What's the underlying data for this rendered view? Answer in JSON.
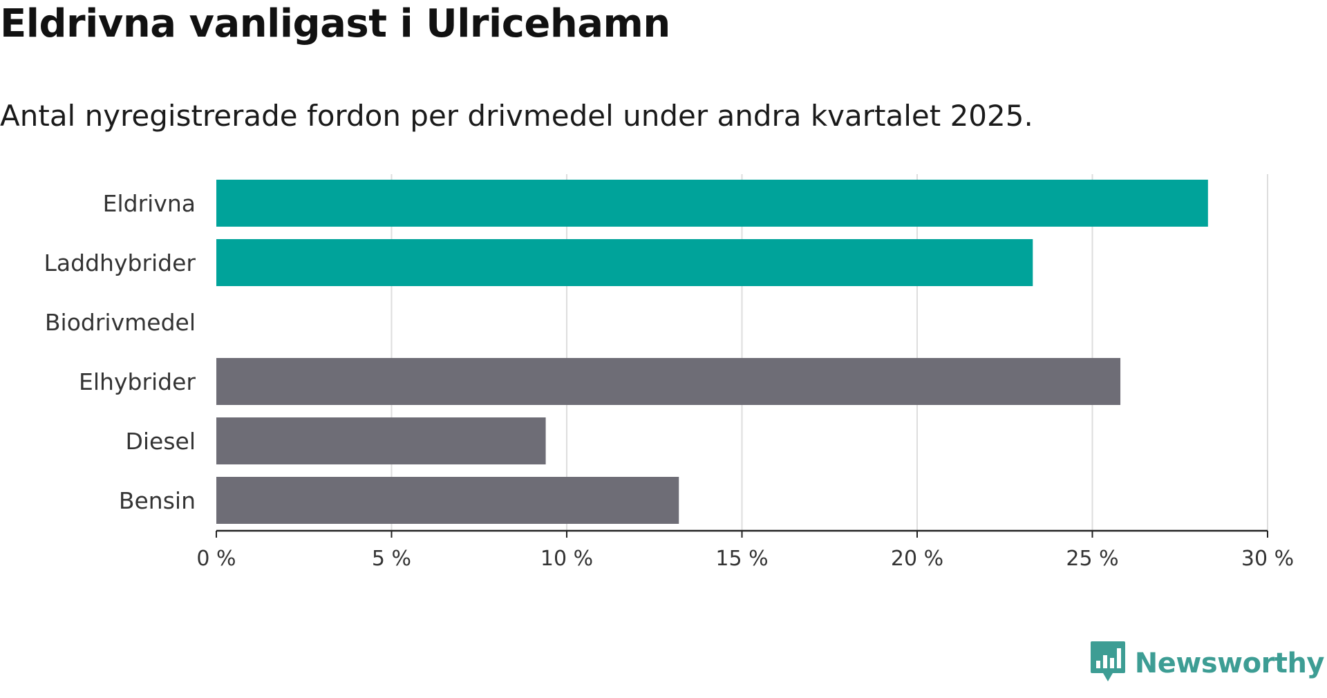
{
  "title": "Eldrivna vanligast i Ulricehamn",
  "subtitle": "Antal nyregistrerade fordon per drivmedel under andra kvartalet 2025.",
  "brand": {
    "name": "Newsworthy",
    "icon": "bar-chart-speech-bubble-icon",
    "color": "#3d9d94"
  },
  "chart_data": {
    "type": "bar",
    "orientation": "horizontal",
    "categories": [
      "Eldrivna",
      "Laddhybrider",
      "Biodrivmedel",
      "Elhybrider",
      "Diesel",
      "Bensin"
    ],
    "values": [
      28.3,
      23.3,
      0,
      25.8,
      9.4,
      13.2
    ],
    "colors": [
      "#00a39a",
      "#00a39a",
      "#00a39a",
      "#6e6d76",
      "#6e6d76",
      "#6e6d76"
    ],
    "xlim": [
      0,
      30
    ],
    "xticks": [
      0,
      5,
      10,
      15,
      20,
      25,
      30
    ],
    "xtick_labels": [
      "0 %",
      "5 %",
      "10 %",
      "15 %",
      "20 %",
      "25 %",
      "30 %"
    ],
    "xlabel": "",
    "ylabel": "",
    "grid": "vertical",
    "gridline_color": "#dddddd",
    "axis_color": "#222222"
  }
}
